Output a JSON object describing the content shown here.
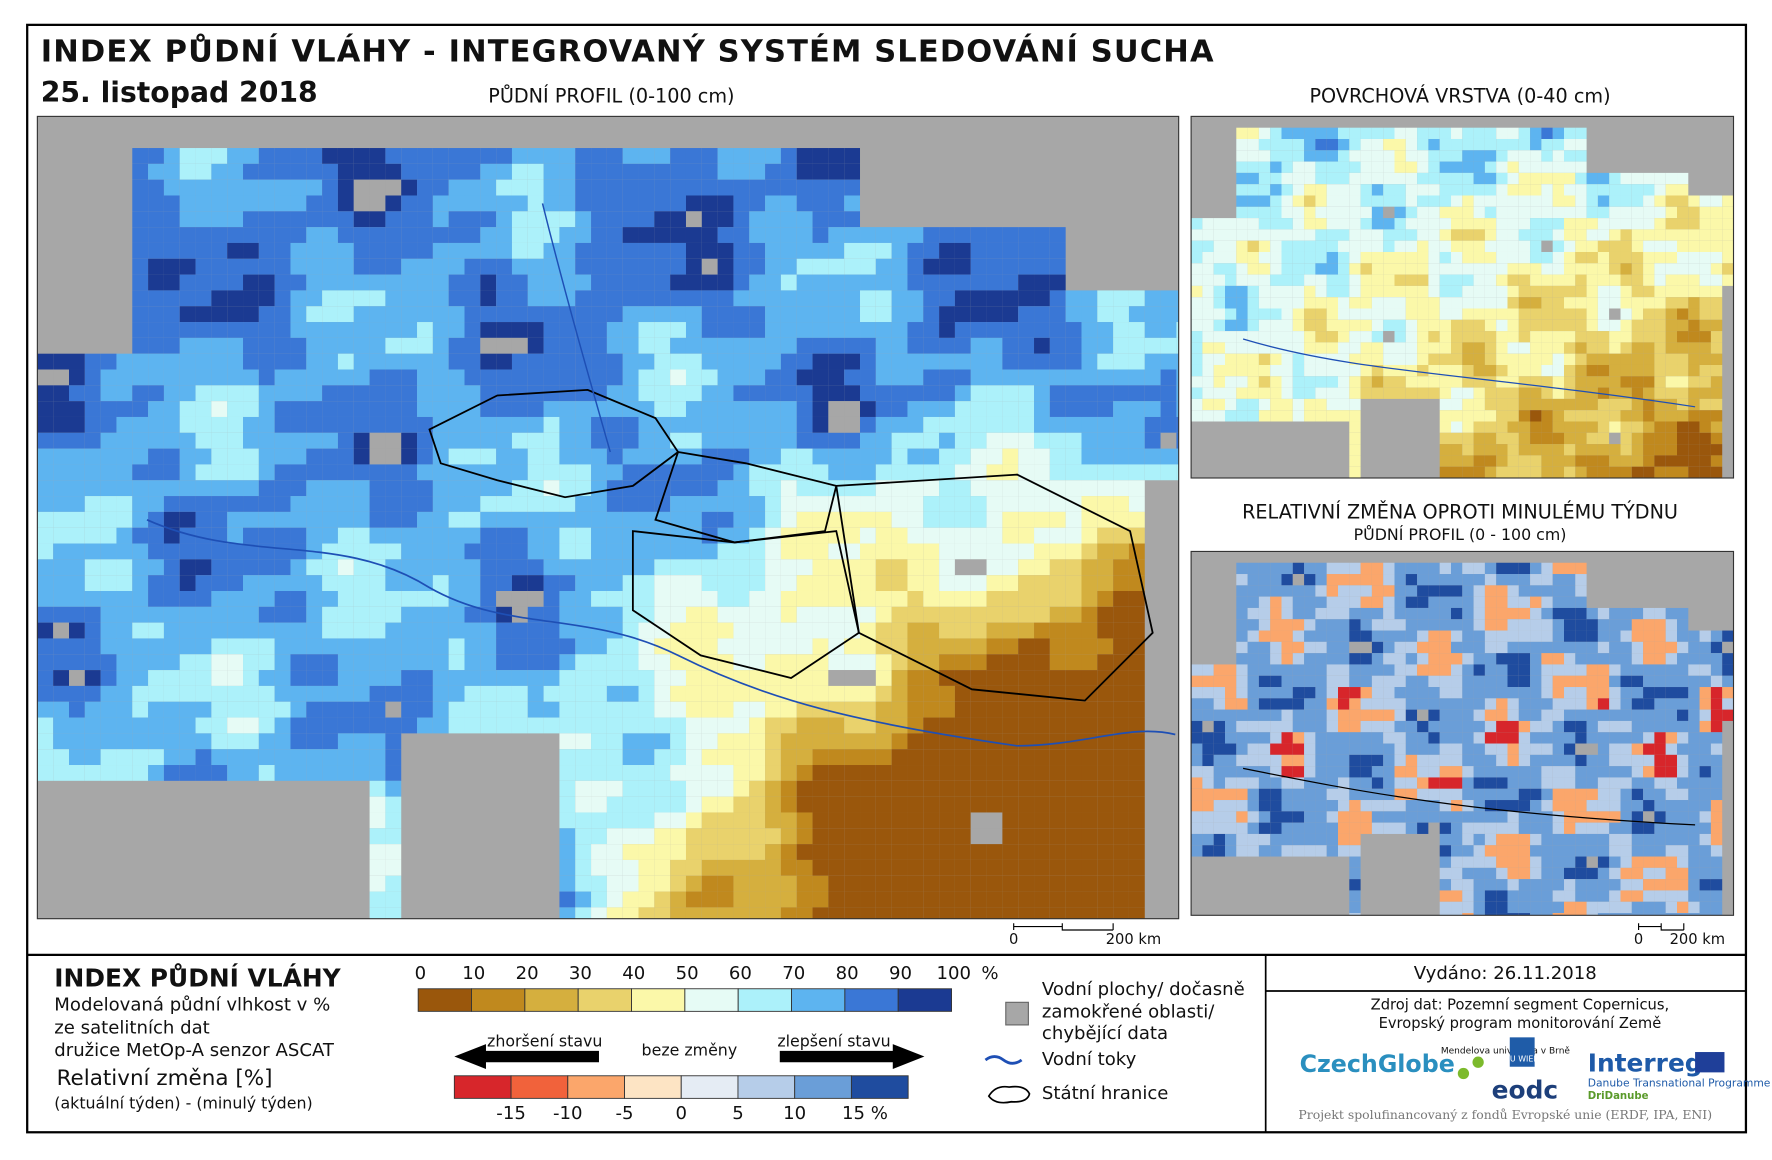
{
  "header": {
    "title": "INDEX PŮDNÍ VLÁHY - INTEGROVANÝ SYSTÉM SLEDOVÁNÍ SUCHA",
    "date": "25. listopad 2018"
  },
  "maps": {
    "main": {
      "title": "PŮDNÍ PROFIL (0-100 cm)"
    },
    "surface": {
      "title": "POVRCHOVÁ VRSTVA (0-40 cm)"
    },
    "change": {
      "title": "RELATIVNÍ ZMĚNA OPROTI MINULÉMU TÝDNU",
      "subtitle": "PŮDNÍ PROFIL (0 - 100 cm)"
    }
  },
  "scale_bars": [
    {
      "start": "0",
      "end": "200 km"
    },
    {
      "start": "0",
      "end": "200 km"
    }
  ],
  "legend": {
    "title": "INDEX PŮDNÍ VLÁHY",
    "description": [
      "Modelovaná půdní vlhkost v %",
      "ze satelitních dat",
      "družice MetOp-A senzor ASCAT"
    ],
    "change_title": "Relativní změna [%]",
    "change_description": "(aktuální týden) - (minulý týden)",
    "moisture_scale": {
      "labels": [
        "0",
        "10",
        "20",
        "30",
        "40",
        "50",
        "60",
        "70",
        "80",
        "90",
        "100"
      ],
      "unit": "%",
      "colors": [
        "#9a570c",
        "#c0891e",
        "#d5af3e",
        "#e9d26c",
        "#fbf8a9",
        "#e6fbf5",
        "#acf1fa",
        "#5db4f0",
        "#3a77d6",
        "#1b3a92"
      ]
    },
    "change_scale": {
      "labels": [
        "-15",
        "-10",
        "-5",
        "0",
        "5",
        "10",
        "15 %"
      ],
      "colors": [
        "#d7262b",
        "#f1623b",
        "#fba66b",
        "#fde4c4",
        "#e5ecf4",
        "#b6cde9",
        "#6a9ed8",
        "#1f4c9f"
      ],
      "worse": "zhoršení stavu",
      "none": "beze změny",
      "better": "zlepšení stavu"
    },
    "items": [
      {
        "label": [
          "Vodní plochy/ dočasně",
          "zamokřené oblasti/",
          "chybějící data"
        ],
        "color": "#a7a7a7"
      },
      {
        "label": "Vodní toky",
        "color": "#1e4fb5"
      },
      {
        "label": "Státní hranice"
      }
    ]
  },
  "footer": {
    "issued": "Vydáno: 26.11.2018",
    "source": [
      "Zdroj dat: Pozemní segment Copernicus,",
      "Evropský program monitorování Země"
    ],
    "logos": {
      "czechglobe": "CzechGlobe",
      "mendel": "Mendelova univerzita v Brně",
      "tuwien": "TU WIEN",
      "eodc": "eodc",
      "interreg": "Interreg",
      "danube": "Danube Transnational Programme",
      "dridanube": "DriDanube"
    },
    "funding": "Projekt spolufinancovaný z fondů Evropské unie (ERDF, IPA, ENI)"
  }
}
